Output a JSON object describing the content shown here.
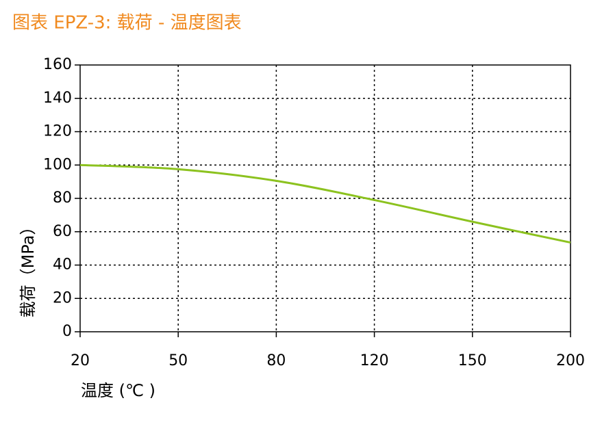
{
  "chart_data": {
    "type": "line",
    "title": "图表  EPZ-3: 载荷 - 温度图表",
    "x_label": "温度 (℃ )",
    "y_label": "载荷（MPa）",
    "categories": [
      "20",
      "50",
      "80",
      "120",
      "150",
      "200"
    ],
    "series": [
      {
        "name": "载荷",
        "color": "#8cc21f",
        "values": [
          100,
          97.5,
          90.5,
          79,
          66,
          53.5
        ]
      }
    ],
    "ylim": [
      0,
      160
    ],
    "yticks": [
      0,
      20,
      40,
      60,
      80,
      100,
      120,
      140,
      160
    ],
    "grid": true
  }
}
